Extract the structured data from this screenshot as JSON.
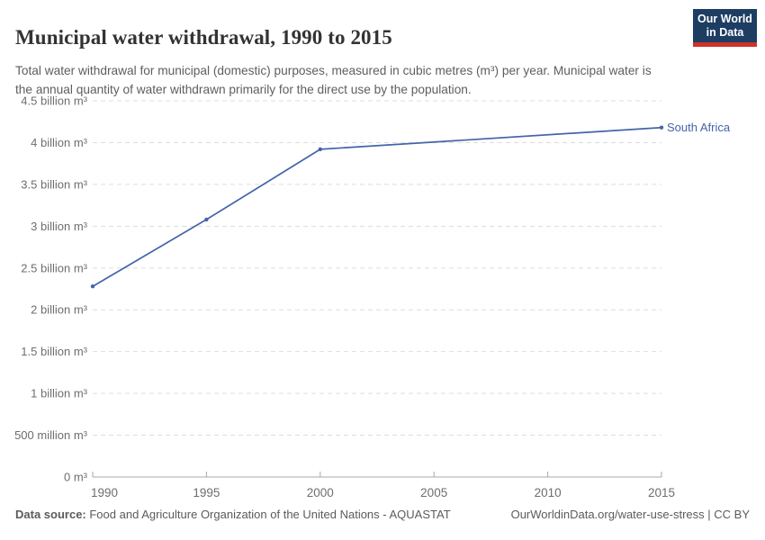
{
  "header": {
    "title": "Municipal water withdrawal, 1990 to 2015",
    "subtitle": "Total water withdrawal for municipal (domestic) purposes, measured in cubic metres (m³) per year. Municipal water is the annual quantity of water withdrawn primarily for the direct use by the population.",
    "logo": {
      "line1": "Our World",
      "line2": "in Data",
      "bg_color": "#1d3d63",
      "accent_color": "#cc3329"
    }
  },
  "chart_data": {
    "type": "line",
    "title": "Municipal water withdrawal, 1990 to 2015",
    "value_unit": "billion m³ per year",
    "x": [
      1990,
      1995,
      2000,
      2015
    ],
    "series": [
      {
        "name": "South Africa",
        "color": "#4464a9",
        "values": [
          2.28,
          3.08,
          3.92,
          4.18
        ]
      }
    ],
    "xlim": [
      1990,
      2015
    ],
    "ylim": [
      0,
      4.5
    ],
    "xticks": [
      {
        "value": 1990,
        "label": "1990"
      },
      {
        "value": 1995,
        "label": "1995"
      },
      {
        "value": 2000,
        "label": "2000"
      },
      {
        "value": 2005,
        "label": "2005"
      },
      {
        "value": 2010,
        "label": "2010"
      },
      {
        "value": 2015,
        "label": "2015"
      }
    ],
    "yticks": [
      {
        "value": 0,
        "label": "0 m³"
      },
      {
        "value": 0.5,
        "label": "500 million m³"
      },
      {
        "value": 1,
        "label": "1 billion m³"
      },
      {
        "value": 1.5,
        "label": "1.5 billion m³"
      },
      {
        "value": 2,
        "label": "2 billion m³"
      },
      {
        "value": 2.5,
        "label": "2.5 billion m³"
      },
      {
        "value": 3,
        "label": "3 billion m³"
      },
      {
        "value": 3.5,
        "label": "3.5 billion m³"
      },
      {
        "value": 4,
        "label": "4 billion m³"
      },
      {
        "value": 4.5,
        "label": "4.5 billion m³"
      }
    ],
    "grid": "horizontal-dashed",
    "legend": "entity-label-at-line-end"
  },
  "footer": {
    "source_label": "Data source:",
    "source_value": " Food and Agriculture Organization of the United Nations - AQUASTAT",
    "link": "OurWorldinData.org/water-use-stress",
    "license": " | CC BY"
  }
}
